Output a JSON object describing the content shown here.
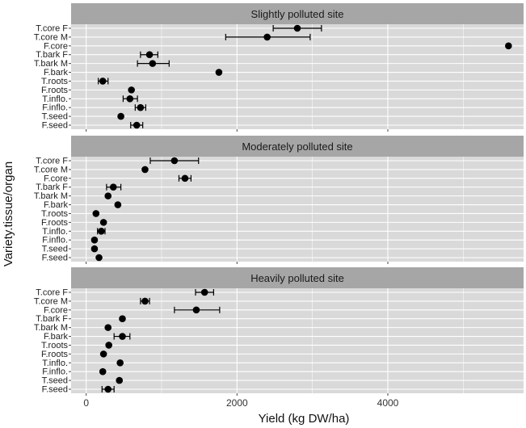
{
  "chart_data": {
    "type": "scatter",
    "subtype": "dot-plot-with-error-bars",
    "xlabel": "Yield (kg DW/ha)",
    "ylabel": "Variety.tissue/organ",
    "xlim": [
      -200,
      5800
    ],
    "xticks": [
      0,
      2000,
      4000
    ],
    "grid": true,
    "categories": [
      "T.core F",
      "T.core M",
      "F.core",
      "T.bark F",
      "T.bark M",
      "F.bark",
      "T.roots",
      "F.roots",
      "T.inflo.",
      "F.inflo.",
      "T.seed",
      "F.seed"
    ],
    "facets": [
      {
        "title": "Slightly polluted site",
        "points": [
          {
            "category": "T.core F",
            "value": 2800,
            "low": 2480,
            "high": 3120
          },
          {
            "category": "T.core M",
            "value": 2400,
            "low": 1850,
            "high": 2970
          },
          {
            "category": "F.core",
            "value": 5600,
            "low": null,
            "high": null
          },
          {
            "category": "T.bark F",
            "value": 840,
            "low": 720,
            "high": 950
          },
          {
            "category": "T.bark M",
            "value": 880,
            "low": 680,
            "high": 1100
          },
          {
            "category": "F.bark",
            "value": 1760,
            "low": null,
            "high": null
          },
          {
            "category": "T.roots",
            "value": 220,
            "low": 160,
            "high": 290
          },
          {
            "category": "F.roots",
            "value": 600,
            "low": null,
            "high": null
          },
          {
            "category": "T.inflo.",
            "value": 580,
            "low": 490,
            "high": 680
          },
          {
            "category": "F.inflo.",
            "value": 720,
            "low": 650,
            "high": 790
          },
          {
            "category": "T.seed",
            "value": 460,
            "low": null,
            "high": null
          },
          {
            "category": "F.seed",
            "value": 670,
            "low": 590,
            "high": 750
          }
        ]
      },
      {
        "title": "Moderately polluted site",
        "points": [
          {
            "category": "T.core F",
            "value": 1170,
            "low": 850,
            "high": 1490
          },
          {
            "category": "T.core M",
            "value": 780,
            "low": null,
            "high": null
          },
          {
            "category": "F.core",
            "value": 1310,
            "low": 1230,
            "high": 1390
          },
          {
            "category": "T.bark F",
            "value": 360,
            "low": 270,
            "high": 460
          },
          {
            "category": "T.bark M",
            "value": 290,
            "low": null,
            "high": null
          },
          {
            "category": "F.bark",
            "value": 420,
            "low": null,
            "high": null
          },
          {
            "category": "T.roots",
            "value": 130,
            "low": null,
            "high": null
          },
          {
            "category": "F.roots",
            "value": 230,
            "low": null,
            "high": null
          },
          {
            "category": "T.inflo.",
            "value": 200,
            "low": 150,
            "high": 250
          },
          {
            "category": "F.inflo.",
            "value": 110,
            "low": null,
            "high": null
          },
          {
            "category": "T.seed",
            "value": 110,
            "low": null,
            "high": null
          },
          {
            "category": "F.seed",
            "value": 170,
            "low": null,
            "high": null
          }
        ]
      },
      {
        "title": "Heavily polluted site",
        "points": [
          {
            "category": "T.core F",
            "value": 1570,
            "low": 1450,
            "high": 1690
          },
          {
            "category": "T.core M",
            "value": 780,
            "low": 720,
            "high": 840
          },
          {
            "category": "F.core",
            "value": 1460,
            "low": 1170,
            "high": 1770
          },
          {
            "category": "T.bark F",
            "value": 480,
            "low": null,
            "high": null
          },
          {
            "category": "T.bark M",
            "value": 290,
            "low": null,
            "high": null
          },
          {
            "category": "F.bark",
            "value": 480,
            "low": 370,
            "high": 580
          },
          {
            "category": "T.roots",
            "value": 300,
            "low": null,
            "high": null
          },
          {
            "category": "F.roots",
            "value": 230,
            "low": null,
            "high": null
          },
          {
            "category": "T.inflo.",
            "value": 450,
            "low": null,
            "high": null
          },
          {
            "category": "F.inflo.",
            "value": 220,
            "low": null,
            "high": null
          },
          {
            "category": "T.seed",
            "value": 440,
            "low": null,
            "high": null
          },
          {
            "category": "F.seed",
            "value": 290,
            "low": 210,
            "high": 370
          }
        ]
      }
    ]
  }
}
